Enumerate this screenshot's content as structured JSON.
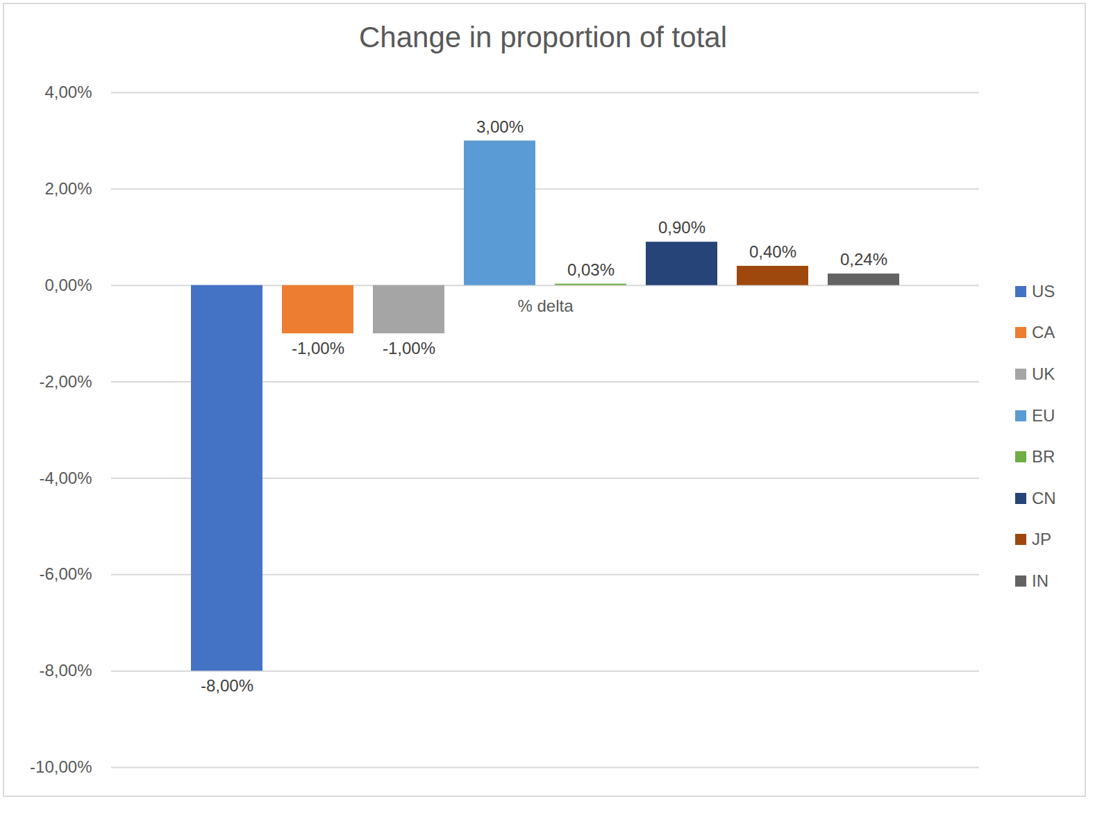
{
  "chart_data": {
    "type": "bar",
    "title": "Change in proportion of total",
    "categories": [
      "% delta"
    ],
    "series": [
      {
        "name": "US",
        "color": "#4472c4",
        "values": [
          -8
        ],
        "value_labels": [
          "-8,00%"
        ]
      },
      {
        "name": "CA",
        "color": "#ed7d31",
        "values": [
          -1
        ],
        "value_labels": [
          "-1,00%"
        ]
      },
      {
        "name": "UK",
        "color": "#a5a5a5",
        "values": [
          -1
        ],
        "value_labels": [
          "-1,00%"
        ]
      },
      {
        "name": "EU",
        "color": "#5b9bd5",
        "values": [
          3
        ],
        "value_labels": [
          "3,00%"
        ]
      },
      {
        "name": "BR",
        "color": "#70ad47",
        "values": [
          0.03
        ],
        "value_labels": [
          "0,03%"
        ]
      },
      {
        "name": "CN",
        "color": "#264478",
        "values": [
          0.9
        ],
        "value_labels": [
          "0,90%"
        ]
      },
      {
        "name": "JP",
        "color": "#9e480e",
        "values": [
          0.4
        ],
        "value_labels": [
          "0,40%"
        ]
      },
      {
        "name": "IN",
        "color": "#636363",
        "values": [
          0.24
        ],
        "value_labels": [
          "0,24%"
        ]
      }
    ],
    "ylim": [
      -10,
      4
    ],
    "yticks": [
      {
        "value": -10,
        "label": "-10,00%"
      },
      {
        "value": -8,
        "label": "-8,00%"
      },
      {
        "value": -6,
        "label": "-6,00%"
      },
      {
        "value": -4,
        "label": "-4,00%"
      },
      {
        "value": -2,
        "label": "-2,00%"
      },
      {
        "value": 0,
        "label": "0,00%"
      },
      {
        "value": 2,
        "label": "2,00%"
      },
      {
        "value": 4,
        "label": "4,00%"
      }
    ],
    "grid": true,
    "data_labels": true,
    "legend": "right"
  }
}
